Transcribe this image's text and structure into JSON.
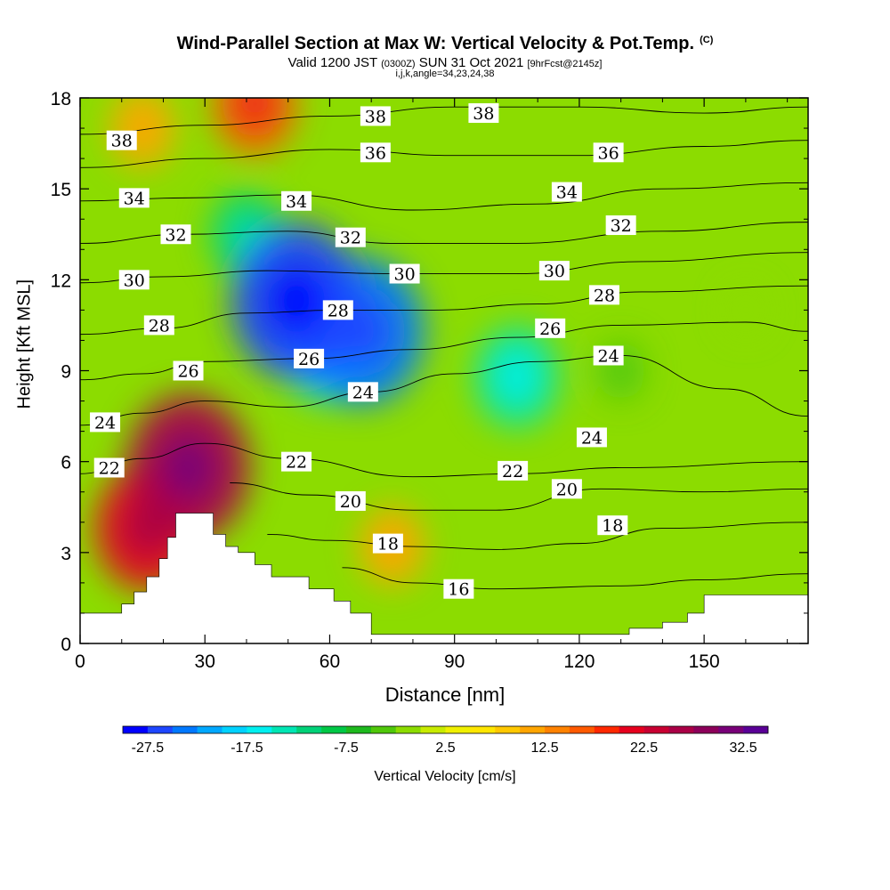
{
  "title": "Wind-Parallel Section at Max W: Vertical Velocity & Pot.Temp.",
  "title_mark": "(C)",
  "subtitle_valid": "Valid 1200 JST",
  "subtitle_utc": "(0300Z)",
  "subtitle_date": "SUN 31 Oct 2021",
  "subtitle_fcst": "[9hrFcst@2145z]",
  "subtitle2": "i,j,k,angle=34,23,24,38",
  "chart_data": {
    "type": "heatmap",
    "xlabel": "Distance [nm]",
    "ylabel": "Height [Kft MSL]",
    "xlim": [
      0,
      175
    ],
    "ylim": [
      0,
      18
    ],
    "x_ticks": [
      0,
      30,
      60,
      90,
      120,
      150
    ],
    "y_ticks": [
      0,
      3,
      6,
      9,
      12,
      15,
      18
    ],
    "colorbar": {
      "label": "Vertical Velocity [cm/s]",
      "tick_labels": [
        "-27.5",
        "-17.5",
        "-7.5",
        "2.5",
        "12.5",
        "22.5",
        "32.5"
      ],
      "colors": [
        "#0000ff",
        "#1e46ff",
        "#0078ff",
        "#00a8ff",
        "#00d2ff",
        "#00f0f0",
        "#00e6b4",
        "#00d278",
        "#00c846",
        "#1eb91e",
        "#50c80a",
        "#8cdc00",
        "#c8eb00",
        "#f0f000",
        "#ffe600",
        "#ffc800",
        "#ffa500",
        "#ff8200",
        "#ff5a00",
        "#ff2800",
        "#e6001e",
        "#c80032",
        "#aa0046",
        "#8c005a",
        "#780078",
        "#5a0096"
      ]
    },
    "w_field_features": [
      {
        "x": 52,
        "y": 11.3,
        "w": -27
      },
      {
        "x": 68,
        "y": 10.3,
        "w": -25
      },
      {
        "x": 60,
        "y": 10.0,
        "w": -20
      },
      {
        "x": 105,
        "y": 8.8,
        "w": -15
      },
      {
        "x": 40,
        "y": 13.5,
        "w": -12
      },
      {
        "x": 26,
        "y": 5.8,
        "w": 25
      },
      {
        "x": 16,
        "y": 3.8,
        "w": 20
      },
      {
        "x": 42,
        "y": 17.8,
        "w": 15
      },
      {
        "x": 15,
        "y": 17.0,
        "w": 10
      },
      {
        "x": 75,
        "y": 3.2,
        "w": 10
      },
      {
        "x": 130,
        "y": 9.0,
        "w": -6
      },
      {
        "x": 160,
        "y": 11.0,
        "w": -3
      }
    ],
    "theta_contours": [
      {
        "value": 16,
        "label_pos": [
          91,
          1.8
        ],
        "pts": [
          [
            63,
            2.5
          ],
          [
            80,
            2.0
          ],
          [
            100,
            1.8
          ],
          [
            130,
            1.9
          ],
          [
            150,
            2.1
          ],
          [
            175,
            2.3
          ]
        ]
      },
      {
        "value": 18,
        "label_pos": [
          74,
          3.3
        ],
        "pts": [
          [
            45,
            3.6
          ],
          [
            60,
            3.4
          ],
          [
            80,
            3.2
          ],
          [
            100,
            3.1
          ],
          [
            120,
            3.3
          ],
          [
            140,
            3.8
          ],
          [
            175,
            4.0
          ]
        ]
      },
      {
        "value": 20,
        "label_pos": [
          65,
          4.7
        ],
        "pts": [
          [
            36,
            5.3
          ],
          [
            55,
            4.9
          ],
          [
            80,
            4.4
          ],
          [
            100,
            4.4
          ],
          [
            125,
            5.1
          ],
          [
            150,
            5.0
          ],
          [
            175,
            5.1
          ]
        ]
      },
      {
        "value": 22,
        "label_pos": [
          52,
          6.0
        ],
        "pts": [
          [
            0,
            5.6
          ],
          [
            15,
            6.1
          ],
          [
            30,
            6.6
          ],
          [
            50,
            6.1
          ],
          [
            80,
            5.5
          ],
          [
            105,
            5.6
          ],
          [
            130,
            5.8
          ],
          [
            175,
            6.0
          ]
        ]
      },
      {
        "value": 24,
        "label_pos": [
          68,
          8.3
        ],
        "pts": [
          [
            0,
            7.2
          ],
          [
            15,
            7.6
          ],
          [
            30,
            8.0
          ],
          [
            50,
            7.8
          ],
          [
            70,
            8.3
          ],
          [
            90,
            8.9
          ],
          [
            110,
            9.3
          ],
          [
            130,
            9.5
          ],
          [
            155,
            8.4
          ],
          [
            175,
            7.5
          ]
        ]
      },
      {
        "value": 26,
        "label_pos": [
          55,
          9.4
        ],
        "pts": [
          [
            0,
            8.7
          ],
          [
            15,
            8.9
          ],
          [
            30,
            9.3
          ],
          [
            55,
            9.4
          ],
          [
            80,
            9.7
          ],
          [
            105,
            10.1
          ],
          [
            130,
            10.5
          ],
          [
            160,
            10.6
          ],
          [
            175,
            10.3
          ]
        ]
      },
      {
        "value": 28,
        "label_pos": [
          62,
          11.0
        ],
        "pts": [
          [
            0,
            10.2
          ],
          [
            20,
            10.4
          ],
          [
            40,
            10.9
          ],
          [
            62,
            11.0
          ],
          [
            85,
            11.0
          ],
          [
            110,
            11.2
          ],
          [
            135,
            11.6
          ],
          [
            175,
            11.8
          ]
        ]
      },
      {
        "value": 30,
        "label_pos": [
          78,
          12.2
        ],
        "pts": [
          [
            0,
            11.9
          ],
          [
            20,
            12.1
          ],
          [
            45,
            12.3
          ],
          [
            75,
            12.2
          ],
          [
            105,
            12.2
          ],
          [
            135,
            12.6
          ],
          [
            175,
            12.9
          ]
        ]
      },
      {
        "value": 32,
        "label_pos": [
          65,
          13.4
        ],
        "pts": [
          [
            0,
            13.2
          ],
          [
            25,
            13.5
          ],
          [
            50,
            13.6
          ],
          [
            75,
            13.2
          ],
          [
            105,
            13.2
          ],
          [
            140,
            13.6
          ],
          [
            175,
            13.9
          ]
        ]
      },
      {
        "value": 34,
        "label_pos": [
          52,
          14.6
        ],
        "pts": [
          [
            0,
            14.6
          ],
          [
            25,
            14.7
          ],
          [
            50,
            14.8
          ],
          [
            80,
            14.3
          ],
          [
            110,
            14.5
          ],
          [
            140,
            15.0
          ],
          [
            175,
            15.2
          ]
        ]
      },
      {
        "value": 36,
        "label_pos": [
          71,
          16.2
        ],
        "pts": [
          [
            0,
            15.7
          ],
          [
            30,
            16.0
          ],
          [
            60,
            16.3
          ],
          [
            90,
            16.1
          ],
          [
            120,
            16.1
          ],
          [
            150,
            16.4
          ],
          [
            175,
            16.6
          ]
        ]
      },
      {
        "value": 38,
        "label_pos": [
          71,
          17.4
        ],
        "pts": [
          [
            0,
            16.8
          ],
          [
            30,
            17.1
          ],
          [
            60,
            17.4
          ],
          [
            90,
            17.7
          ],
          [
            120,
            17.7
          ],
          [
            150,
            17.5
          ],
          [
            175,
            17.7
          ]
        ]
      }
    ],
    "extra_labels": [
      {
        "value": 16,
        "pos": [
          91,
          1.8
        ]
      },
      {
        "value": 18,
        "pos": [
          128,
          3.9
        ]
      },
      {
        "value": 20,
        "pos": [
          117,
          5.1
        ]
      },
      {
        "value": 22,
        "pos": [
          7,
          5.8
        ]
      },
      {
        "value": 22,
        "pos": [
          104,
          5.7
        ]
      },
      {
        "value": 24,
        "pos": [
          6,
          7.3
        ]
      },
      {
        "value": 24,
        "pos": [
          123,
          6.8
        ]
      },
      {
        "value": 24,
        "pos": [
          127,
          9.5
        ]
      },
      {
        "value": 26,
        "pos": [
          26,
          9.0
        ]
      },
      {
        "value": 26,
        "pos": [
          113,
          10.4
        ]
      },
      {
        "value": 28,
        "pos": [
          19,
          10.5
        ]
      },
      {
        "value": 28,
        "pos": [
          126,
          11.5
        ]
      },
      {
        "value": 30,
        "pos": [
          13,
          12.0
        ]
      },
      {
        "value": 30,
        "pos": [
          114,
          12.3
        ]
      },
      {
        "value": 32,
        "pos": [
          23,
          13.5
        ]
      },
      {
        "value": 32,
        "pos": [
          130,
          13.8
        ]
      },
      {
        "value": 34,
        "pos": [
          13,
          14.7
        ]
      },
      {
        "value": 34,
        "pos": [
          117,
          14.9
        ]
      },
      {
        "value": 36,
        "pos": [
          127,
          16.2
        ]
      },
      {
        "value": 38,
        "pos": [
          10,
          16.6
        ]
      },
      {
        "value": 38,
        "pos": [
          97,
          17.5
        ]
      }
    ],
    "terrain": [
      [
        0,
        1.0
      ],
      [
        10,
        1.0
      ],
      [
        10,
        1.3
      ],
      [
        13,
        1.3
      ],
      [
        13,
        1.7
      ],
      [
        16,
        1.7
      ],
      [
        16,
        2.2
      ],
      [
        19,
        2.2
      ],
      [
        19,
        2.8
      ],
      [
        21,
        2.8
      ],
      [
        21,
        3.5
      ],
      [
        23,
        3.5
      ],
      [
        23,
        4.3
      ],
      [
        32,
        4.3
      ],
      [
        32,
        3.6
      ],
      [
        35,
        3.6
      ],
      [
        35,
        3.2
      ],
      [
        38,
        3.2
      ],
      [
        38,
        3.0
      ],
      [
        42,
        3.0
      ],
      [
        42,
        2.6
      ],
      [
        46,
        2.6
      ],
      [
        46,
        2.2
      ],
      [
        55,
        2.2
      ],
      [
        55,
        1.8
      ],
      [
        61,
        1.8
      ],
      [
        61,
        1.4
      ],
      [
        65,
        1.4
      ],
      [
        65,
        1.0
      ],
      [
        70,
        1.0
      ],
      [
        70,
        0.3
      ],
      [
        132,
        0.3
      ],
      [
        132,
        0.5
      ],
      [
        140,
        0.5
      ],
      [
        140,
        0.7
      ],
      [
        146,
        0.7
      ],
      [
        146,
        1.0
      ],
      [
        150,
        1.0
      ],
      [
        150,
        1.6
      ],
      [
        175,
        1.6
      ],
      [
        175,
        0
      ],
      [
        0,
        0
      ]
    ]
  }
}
